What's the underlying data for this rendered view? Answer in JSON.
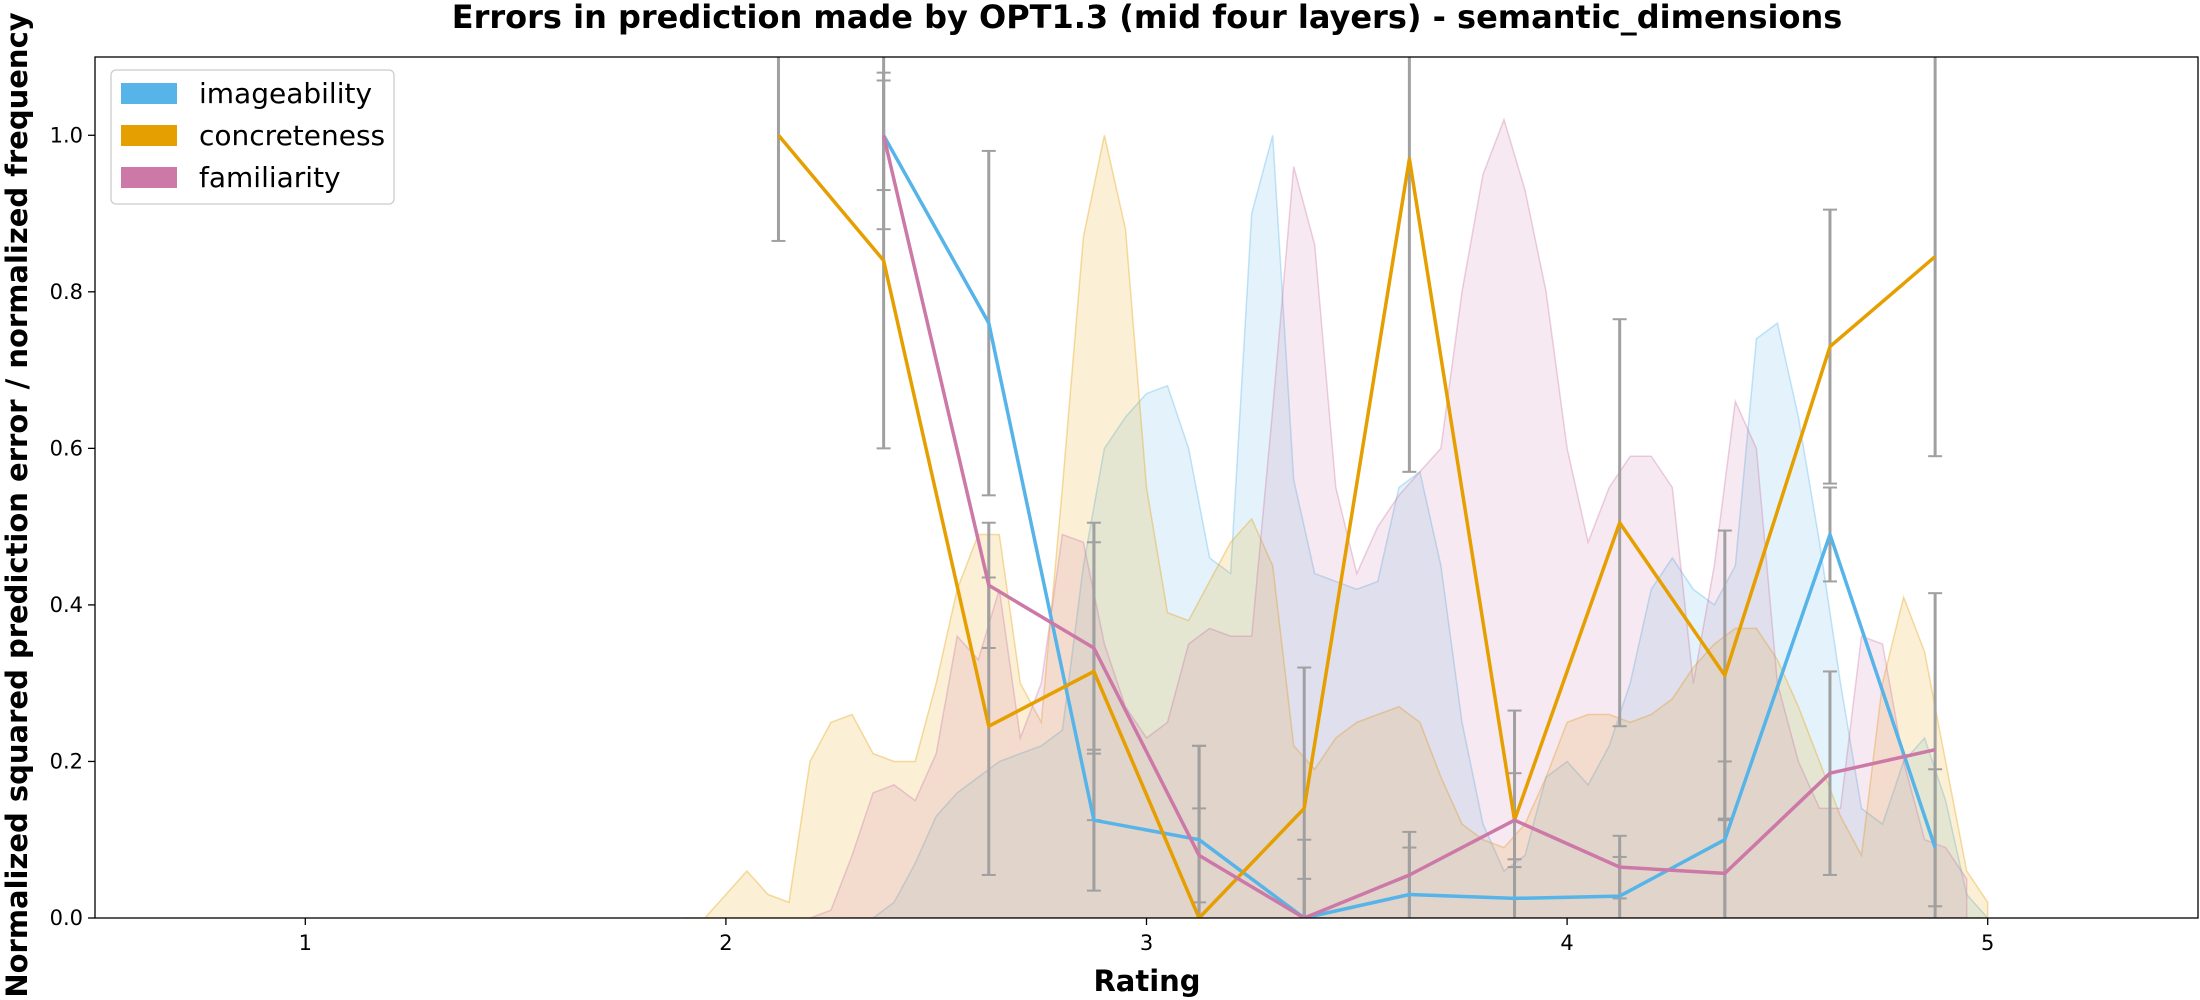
{
  "chart_data": {
    "type": "line",
    "title": "Errors in prediction made by OPT1.3 (mid four layers) - semantic_dimensions",
    "xlabel": "Rating",
    "ylabel": "Normalized squared prediction error / normalized frequency",
    "xlim": [
      0.5,
      5.5
    ],
    "ylim": [
      0,
      1.1
    ],
    "xticks": [
      1,
      2,
      3,
      4,
      5
    ],
    "yticks": [
      "0.0",
      "0.2",
      "0.4",
      "0.6",
      "0.8",
      "1.0"
    ],
    "grid": false,
    "legend_position": "top-left",
    "error_bar_color": "#a0a0a0",
    "series": [
      {
        "name": "imageability",
        "color": "#56b4e9",
        "x": [
          2.375,
          2.625,
          2.875,
          3.125,
          3.375,
          3.625,
          3.875,
          4.125,
          4.375,
          4.625,
          4.875
        ],
        "y": [
          1.0,
          0.76,
          0.125,
          0.1,
          0.0,
          0.03,
          0.025,
          0.028,
          0.1,
          0.49,
          0.09
        ],
        "err": [
          0.12,
          0.22,
          0.09,
          0.12,
          0.1,
          0.06,
          0.05,
          0.05,
          0.1,
          0.06,
          0.1
        ],
        "density_x": [
          2.3,
          2.35,
          2.4,
          2.45,
          2.5,
          2.55,
          2.6,
          2.65,
          2.7,
          2.75,
          2.8,
          2.85,
          2.9,
          2.95,
          3.0,
          3.05,
          3.1,
          3.15,
          3.2,
          3.25,
          3.3,
          3.35,
          3.4,
          3.45,
          3.5,
          3.55,
          3.6,
          3.65,
          3.7,
          3.75,
          3.8,
          3.85,
          3.9,
          3.95,
          4.0,
          4.05,
          4.1,
          4.15,
          4.2,
          4.25,
          4.3,
          4.35,
          4.4,
          4.45,
          4.5,
          4.55,
          4.6,
          4.65,
          4.7,
          4.75,
          4.8,
          4.85,
          4.9,
          4.95,
          5.0
        ],
        "density_y": [
          0.0,
          0.0,
          0.02,
          0.07,
          0.13,
          0.16,
          0.18,
          0.2,
          0.21,
          0.22,
          0.24,
          0.45,
          0.6,
          0.64,
          0.67,
          0.68,
          0.6,
          0.46,
          0.44,
          0.9,
          1.0,
          0.56,
          0.44,
          0.43,
          0.42,
          0.43,
          0.55,
          0.57,
          0.45,
          0.25,
          0.12,
          0.06,
          0.08,
          0.18,
          0.2,
          0.17,
          0.22,
          0.3,
          0.42,
          0.46,
          0.42,
          0.4,
          0.45,
          0.74,
          0.76,
          0.64,
          0.48,
          0.3,
          0.14,
          0.12,
          0.2,
          0.23,
          0.15,
          0.03,
          0.0
        ]
      },
      {
        "name": "concreteness",
        "color": "#e69f00",
        "x": [
          2.125,
          2.375,
          2.625,
          2.875,
          3.125,
          3.375,
          3.625,
          3.875,
          4.125,
          4.375,
          4.625,
          4.875
        ],
        "y": [
          1.0,
          0.84,
          0.245,
          0.315,
          0.0,
          0.14,
          0.97,
          0.125,
          0.505,
          0.31,
          0.73,
          0.845
        ],
        "err": [
          0.135,
          0.24,
          0.19,
          0.19,
          0.22,
          0.18,
          0.4,
          0.14,
          0.26,
          0.185,
          0.175,
          0.255
        ],
        "density_x": [
          1.9,
          1.95,
          2.0,
          2.05,
          2.1,
          2.15,
          2.2,
          2.25,
          2.3,
          2.35,
          2.4,
          2.45,
          2.5,
          2.55,
          2.6,
          2.65,
          2.7,
          2.75,
          2.8,
          2.85,
          2.9,
          2.95,
          3.0,
          3.05,
          3.1,
          3.15,
          3.2,
          3.25,
          3.3,
          3.35,
          3.4,
          3.45,
          3.5,
          3.55,
          3.6,
          3.65,
          3.7,
          3.75,
          3.8,
          3.85,
          3.9,
          3.95,
          4.0,
          4.05,
          4.1,
          4.15,
          4.2,
          4.25,
          4.3,
          4.35,
          4.4,
          4.45,
          4.5,
          4.55,
          4.6,
          4.65,
          4.7,
          4.75,
          4.8,
          4.85,
          4.9,
          4.95,
          5.0
        ],
        "density_y": [
          0.0,
          0.0,
          0.03,
          0.06,
          0.03,
          0.02,
          0.2,
          0.25,
          0.26,
          0.21,
          0.2,
          0.2,
          0.3,
          0.42,
          0.49,
          0.49,
          0.3,
          0.25,
          0.55,
          0.87,
          1.0,
          0.88,
          0.55,
          0.39,
          0.38,
          0.43,
          0.48,
          0.51,
          0.45,
          0.22,
          0.19,
          0.23,
          0.25,
          0.26,
          0.27,
          0.25,
          0.18,
          0.12,
          0.1,
          0.09,
          0.12,
          0.18,
          0.25,
          0.26,
          0.26,
          0.25,
          0.26,
          0.28,
          0.32,
          0.35,
          0.37,
          0.37,
          0.33,
          0.27,
          0.2,
          0.13,
          0.08,
          0.3,
          0.41,
          0.34,
          0.2,
          0.06,
          0.02
        ]
      },
      {
        "name": "familiarity",
        "color": "#cc79a7",
        "x": [
          2.375,
          2.625,
          2.875,
          3.125,
          3.375,
          3.625,
          3.875,
          4.125,
          4.375,
          4.625,
          4.875
        ],
        "y": [
          1.0,
          0.425,
          0.345,
          0.08,
          0.0,
          0.055,
          0.125,
          0.065,
          0.057,
          0.185,
          0.215
        ],
        "err": [
          0.07,
          0.08,
          0.135,
          0.06,
          0.05,
          0.055,
          0.06,
          0.04,
          0.07,
          0.13,
          0.2
        ],
        "density_x": [
          2.2,
          2.25,
          2.3,
          2.35,
          2.4,
          2.45,
          2.5,
          2.55,
          2.6,
          2.65,
          2.7,
          2.75,
          2.8,
          2.85,
          2.9,
          2.95,
          3.0,
          3.05,
          3.1,
          3.15,
          3.2,
          3.25,
          3.3,
          3.35,
          3.4,
          3.45,
          3.5,
          3.55,
          3.6,
          3.65,
          3.7,
          3.75,
          3.8,
          3.85,
          3.9,
          3.95,
          4.0,
          4.05,
          4.1,
          4.15,
          4.2,
          4.25,
          4.3,
          4.35,
          4.4,
          4.45,
          4.5,
          4.55,
          4.6,
          4.65,
          4.7,
          4.75,
          4.8,
          4.85,
          4.9,
          4.95
        ],
        "density_y": [
          0.0,
          0.01,
          0.08,
          0.16,
          0.17,
          0.15,
          0.21,
          0.36,
          0.33,
          0.42,
          0.23,
          0.3,
          0.49,
          0.48,
          0.35,
          0.27,
          0.23,
          0.25,
          0.35,
          0.37,
          0.36,
          0.36,
          0.65,
          0.96,
          0.86,
          0.55,
          0.44,
          0.5,
          0.54,
          0.57,
          0.6,
          0.8,
          0.95,
          1.02,
          0.93,
          0.8,
          0.6,
          0.48,
          0.55,
          0.59,
          0.59,
          0.55,
          0.3,
          0.45,
          0.66,
          0.6,
          0.3,
          0.2,
          0.14,
          0.14,
          0.36,
          0.35,
          0.2,
          0.1,
          0.09,
          0.05
        ]
      }
    ]
  }
}
